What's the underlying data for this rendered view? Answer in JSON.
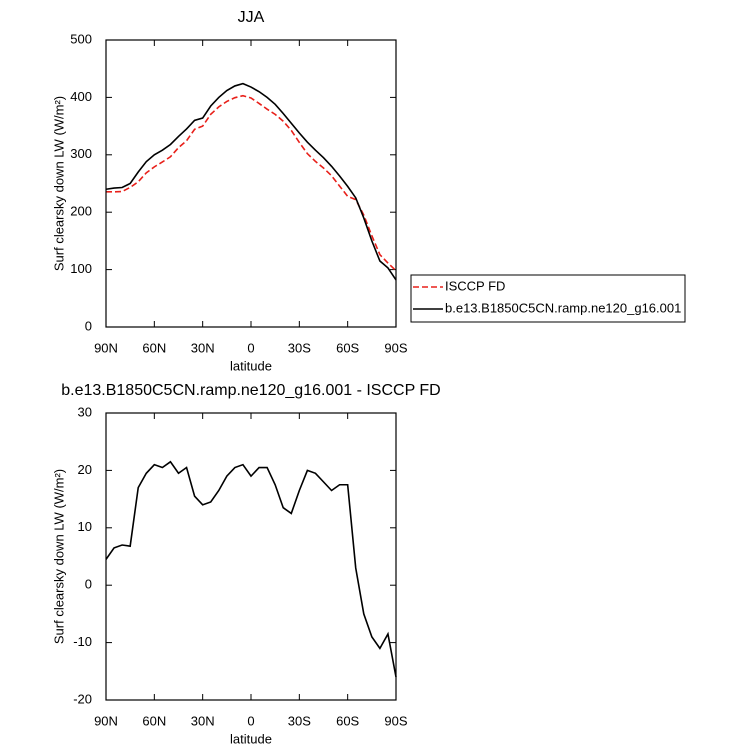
{
  "chart_data": [
    {
      "type": "line",
      "title": "JJA",
      "xlabel": "latitude",
      "ylabel": "Surf clearsky down LW (W/m²)",
      "x": [
        90,
        85,
        80,
        75,
        70,
        65,
        60,
        55,
        50,
        45,
        40,
        35,
        30,
        25,
        20,
        15,
        10,
        5,
        0,
        -5,
        -10,
        -15,
        -20,
        -25,
        -30,
        -35,
        -40,
        -45,
        -50,
        -55,
        -60,
        -65,
        -70,
        -75,
        -80,
        -85,
        -90
      ],
      "series": [
        {
          "name": "ISCCP FD",
          "color": "#e8201a",
          "linestyle": "dashed",
          "values": [
            235.5,
            235.5,
            236,
            243.2,
            253,
            268.5,
            279,
            287.5,
            296.5,
            312.5,
            324.5,
            344.5,
            350,
            370.5,
            383.5,
            393,
            399.5,
            403,
            399,
            389.5,
            379.5,
            370.5,
            358.5,
            342.5,
            321.5,
            302,
            288.5,
            277,
            263.5,
            245.5,
            227.5,
            222,
            195,
            159,
            126,
            111.5,
            98
          ]
        },
        {
          "name": "b.e13.B1850C5CN.ramp.ne120_g16.001",
          "color": "#000000",
          "linestyle": "solid",
          "values": [
            240,
            242,
            243,
            250,
            270,
            288,
            300,
            308,
            318,
            332,
            345,
            360,
            364,
            385,
            400,
            412,
            420,
            424,
            418,
            410,
            400,
            388,
            372,
            355,
            338,
            322,
            308,
            295,
            280,
            263,
            245,
            225,
            190,
            150,
            115,
            103,
            82
          ]
        }
      ],
      "xlim": [
        90,
        -90
      ],
      "ylim": [
        0,
        500
      ],
      "xticks": [
        {
          "value": 90,
          "label": "90N"
        },
        {
          "value": 60,
          "label": "60N"
        },
        {
          "value": 30,
          "label": "30N"
        },
        0,
        {
          "value": -30,
          "label": "30S"
        },
        {
          "value": -60,
          "label": "60S"
        },
        {
          "value": -90,
          "label": "90S"
        }
      ],
      "yticks": [
        0,
        100,
        200,
        300,
        400,
        500
      ],
      "legend": "right"
    },
    {
      "type": "line",
      "title": "b.e13.B1850C5CN.ramp.ne120_g16.001 - ISCCP FD",
      "xlabel": "latitude",
      "ylabel": "Surf clearsky down LW (W/m²)",
      "x": [
        90,
        85,
        80,
        75,
        70,
        65,
        60,
        55,
        50,
        45,
        40,
        35,
        30,
        25,
        20,
        15,
        10,
        5,
        0,
        -5,
        -10,
        -15,
        -20,
        -25,
        -30,
        -35,
        -40,
        -45,
        -50,
        -55,
        -60,
        -65,
        -70,
        -75,
        -80,
        -85,
        -90
      ],
      "series": [
        {
          "color": "#000000",
          "linestyle": "solid",
          "values": [
            4.5,
            6.5,
            7,
            6.8,
            17,
            19.5,
            21,
            20.5,
            21.5,
            19.5,
            20.5,
            15.5,
            14,
            14.5,
            16.5,
            19,
            20.5,
            21,
            19,
            20.5,
            20.5,
            17.5,
            13.5,
            12.5,
            16.5,
            20,
            19.5,
            18,
            16.5,
            17.5,
            17.5,
            3,
            -5,
            -9,
            -11,
            -8.5,
            -16
          ]
        }
      ],
      "xlim": [
        90,
        -90
      ],
      "ylim": [
        -20,
        30
      ],
      "xticks": [
        {
          "value": 90,
          "label": "90N"
        },
        {
          "value": 60,
          "label": "60N"
        },
        {
          "value": 30,
          "label": "30N"
        },
        0,
        {
          "value": -30,
          "label": "30S"
        },
        {
          "value": -60,
          "label": "60S"
        },
        {
          "value": -90,
          "label": "90S"
        }
      ],
      "yticks": [
        -20,
        -10,
        0,
        10,
        20,
        30
      ]
    }
  ]
}
